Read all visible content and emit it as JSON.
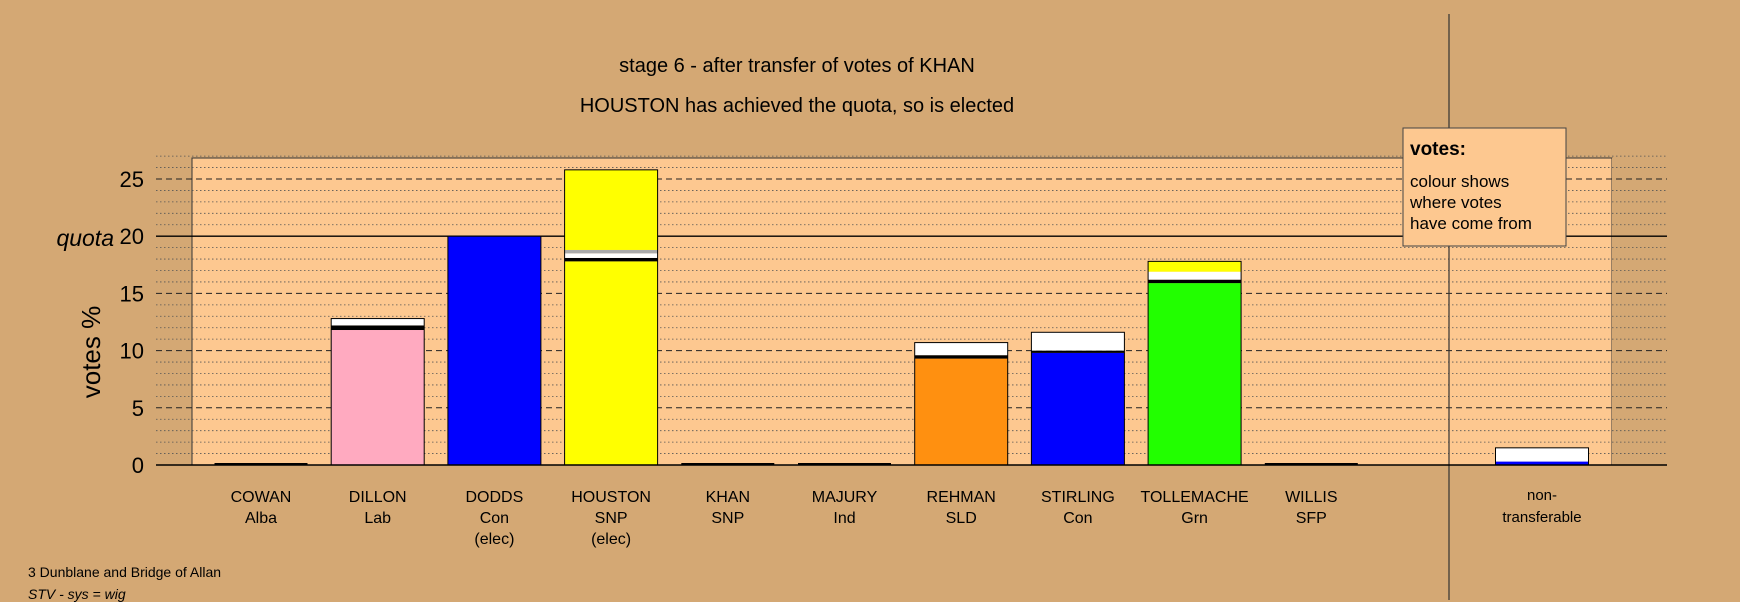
{
  "chart_data": {
    "type": "bar",
    "title": "stage 6 - after transfer of votes of KHAN",
    "subtitle": "HOUSTON has achieved the quota, so is elected",
    "ylabel": "votes %",
    "quota_label": "quota",
    "quota": 20,
    "ylim": [
      0,
      27
    ],
    "yticks": [
      0,
      5,
      10,
      15,
      20,
      25
    ],
    "grid": true,
    "legend": {
      "position": "top-right",
      "title": "votes:",
      "lines": [
        "colour shows",
        "where votes",
        "have come from"
      ]
    },
    "candidates": [
      {
        "name": "COWAN",
        "party": "Alba",
        "status": "",
        "segments": []
      },
      {
        "name": "DILLON",
        "party": "Lab",
        "status": "",
        "segments": [
          {
            "value": 11.8,
            "color": "#ffaac0"
          },
          {
            "value": 0.4,
            "color": "#000000"
          },
          {
            "value": 0.6,
            "color": "#ffffff"
          }
        ]
      },
      {
        "name": "DODDS",
        "party": "Con",
        "status": "(elec)",
        "segments": [
          {
            "value": 20.0,
            "color": "#0000ff"
          }
        ]
      },
      {
        "name": "HOUSTON",
        "party": "SNP",
        "status": "(elec)",
        "segments": [
          {
            "value": 17.8,
            "color": "#ffff00"
          },
          {
            "value": 0.3,
            "color": "#000000"
          },
          {
            "value": 0.4,
            "color": "#ffffff"
          },
          {
            "value": 0.3,
            "color": "#aaaaaa"
          },
          {
            "value": 7.0,
            "color": "#ffff00"
          }
        ]
      },
      {
        "name": "KHAN",
        "party": "SNP",
        "status": "",
        "segments": []
      },
      {
        "name": "MAJURY",
        "party": "Ind",
        "status": "",
        "segments": []
      },
      {
        "name": "REHMAN",
        "party": "SLD",
        "status": "",
        "segments": [
          {
            "value": 9.3,
            "color": "#ff9010"
          },
          {
            "value": 0.3,
            "color": "#000000"
          },
          {
            "value": 1.1,
            "color": "#ffffff"
          }
        ]
      },
      {
        "name": "STIRLING",
        "party": "Con",
        "status": "",
        "segments": [
          {
            "value": 9.8,
            "color": "#0000ff"
          },
          {
            "value": 0.2,
            "color": "#000000"
          },
          {
            "value": 1.6,
            "color": "#ffffff"
          }
        ]
      },
      {
        "name": "TOLLEMACHE",
        "party": "Grn",
        "status": "",
        "segments": [
          {
            "value": 15.9,
            "color": "#22ff00"
          },
          {
            "value": 0.3,
            "color": "#000000"
          },
          {
            "value": 0.7,
            "color": "#ffffff"
          },
          {
            "value": 0.9,
            "color": "#ffff00"
          }
        ]
      },
      {
        "name": "WILLIS",
        "party": "SFP",
        "status": "",
        "segments": []
      }
    ],
    "nontransferable": {
      "label1": "non-",
      "label2": "transferable",
      "segments": [
        {
          "value": 0.3,
          "color": "#0000ff"
        },
        {
          "value": 1.2,
          "color": "#ffffff"
        }
      ]
    }
  },
  "footer": {
    "line1": "3 Dunblane and Bridge of Allan",
    "line2": "STV - sys = wig"
  }
}
